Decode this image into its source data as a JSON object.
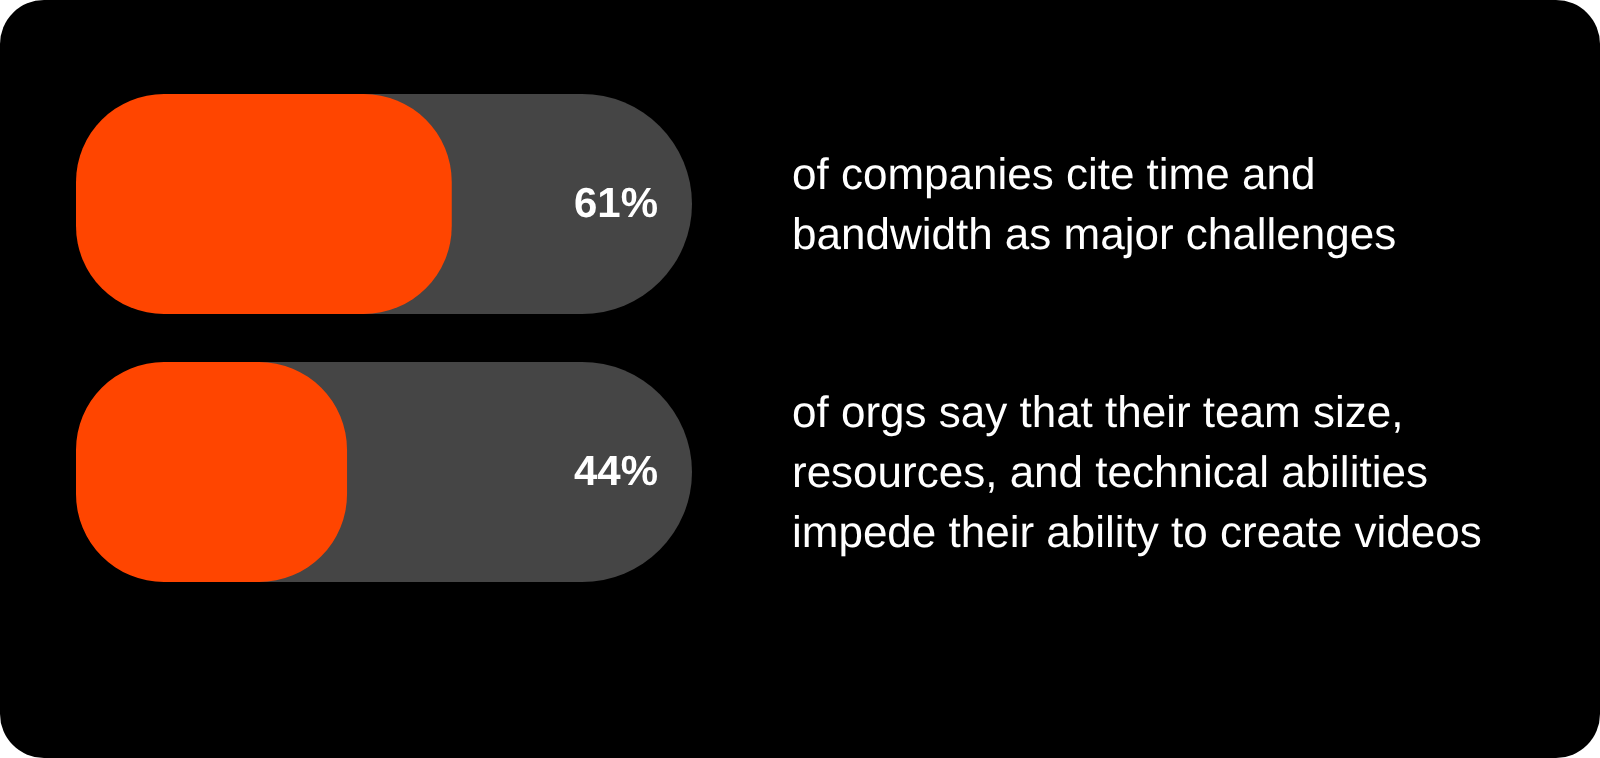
{
  "chart_data": {
    "type": "bar",
    "orientation": "horizontal",
    "categories": [
      "of companies cite time and bandwidth as major challenges",
      "of orgs say that their team size, resources, and technical abilities impede their ability to create videos"
    ],
    "values": [
      61,
      44
    ],
    "color": "#ff4500",
    "value_labels": [
      "61%",
      "44%"
    ],
    "xlim": [
      0,
      100
    ],
    "tick_labels": "y"
  }
}
